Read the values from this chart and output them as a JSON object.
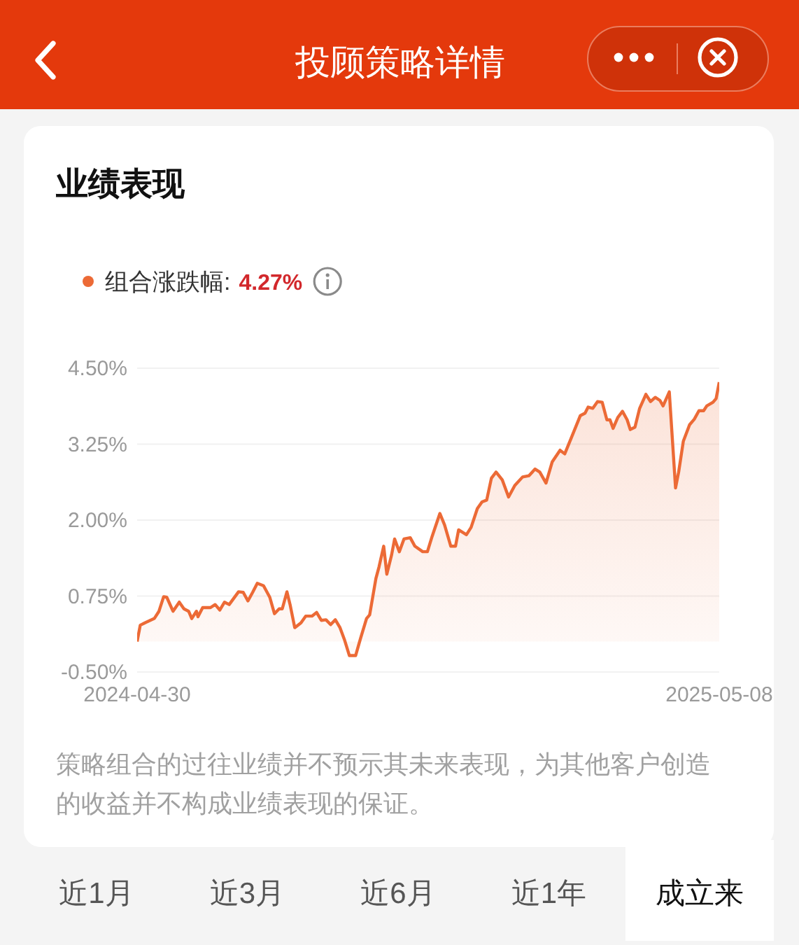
{
  "chart_data": {
    "type": "area",
    "title": "投顾策略详情",
    "subtitle": "业绩表现",
    "x": [
      "2024-04-30",
      "2024-05-02",
      "2024-05-05",
      "2024-05-11",
      "2024-05-14",
      "2024-05-17",
      "2024-05-19",
      "2024-05-23",
      "2024-05-27",
      "2024-05-30",
      "2024-06-02",
      "2024-06-04",
      "2024-06-07",
      "2024-06-08",
      "2024-06-11",
      "2024-06-16",
      "2024-06-19",
      "2024-06-22",
      "2024-06-25",
      "2024-06-28",
      "2024-07-04",
      "2024-07-07",
      "2024-07-10",
      "2024-07-13",
      "2024-07-16",
      "2024-07-20",
      "2024-07-24",
      "2024-07-27",
      "2024-07-30",
      "2024-08-01",
      "2024-08-04",
      "2024-08-06",
      "2024-08-09",
      "2024-08-13",
      "2024-08-16",
      "2024-08-20",
      "2024-08-23",
      "2024-08-26",
      "2024-08-29",
      "2024-09-01",
      "2024-09-04",
      "2024-09-07",
      "2024-09-10",
      "2024-09-13",
      "2024-09-17",
      "2024-09-20",
      "2024-09-24",
      "2024-09-26",
      "2024-09-30",
      "2024-10-02",
      "2024-10-05",
      "2024-10-07",
      "2024-10-10",
      "2024-10-12",
      "2024-10-15",
      "2024-10-18",
      "2024-10-22",
      "2024-10-25",
      "2024-10-30",
      "2024-11-02",
      "2024-11-05",
      "2024-11-10",
      "2024-11-13",
      "2024-11-17",
      "2024-11-20",
      "2024-11-22",
      "2024-11-27",
      "2024-11-30",
      "2024-12-04",
      "2024-12-07",
      "2024-12-10",
      "2024-12-13",
      "2024-12-16",
      "2024-12-20",
      "2024-12-24",
      "2024-12-28",
      "2025-01-02",
      "2025-01-06",
      "2025-01-10",
      "2025-01-13",
      "2025-01-17",
      "2025-01-21",
      "2025-01-26",
      "2025-01-29",
      "2025-02-02",
      "2025-02-08",
      "2025-02-11",
      "2025-02-13",
      "2025-02-16",
      "2025-02-19",
      "2025-02-22",
      "2025-02-25",
      "2025-02-27",
      "2025-03-01",
      "2025-03-04",
      "2025-03-07",
      "2025-03-10",
      "2025-03-12",
      "2025-03-15",
      "2025-03-18",
      "2025-03-22",
      "2025-03-25",
      "2025-03-28",
      "2025-03-31",
      "2025-04-02",
      "2025-04-06",
      "2025-04-10",
      "2025-04-12",
      "2025-04-15",
      "2025-04-19",
      "2025-04-22",
      "2025-04-25",
      "2025-04-28",
      "2025-04-30",
      "2025-05-04",
      "2025-05-06",
      "2025-05-08"
    ],
    "series": [
      {
        "name": "组合涨跌幅:",
        "color": "#ec6a36",
        "values": [
          0.0,
          0.27,
          0.31,
          0.38,
          0.5,
          0.74,
          0.73,
          0.5,
          0.65,
          0.54,
          0.5,
          0.38,
          0.5,
          0.41,
          0.56,
          0.56,
          0.61,
          0.52,
          0.65,
          0.61,
          0.82,
          0.81,
          0.67,
          0.81,
          0.96,
          0.92,
          0.73,
          0.46,
          0.54,
          0.54,
          0.82,
          0.61,
          0.23,
          0.31,
          0.42,
          0.42,
          0.48,
          0.35,
          0.36,
          0.28,
          0.36,
          0.23,
          0.02,
          -0.23,
          -0.23,
          0.04,
          0.38,
          0.44,
          1.04,
          1.23,
          1.57,
          1.11,
          1.42,
          1.69,
          1.48,
          1.69,
          1.71,
          1.57,
          1.48,
          1.48,
          1.73,
          2.11,
          1.92,
          1.57,
          1.57,
          1.84,
          1.76,
          1.88,
          2.19,
          2.3,
          2.33,
          2.69,
          2.79,
          2.66,
          2.38,
          2.57,
          2.71,
          2.73,
          2.84,
          2.79,
          2.61,
          2.96,
          3.15,
          3.09,
          3.34,
          3.72,
          3.76,
          3.86,
          3.84,
          3.95,
          3.94,
          3.65,
          3.65,
          3.51,
          3.69,
          3.79,
          3.65,
          3.49,
          3.53,
          3.84,
          4.07,
          3.95,
          4.02,
          3.97,
          3.88,
          4.11,
          2.53,
          2.79,
          3.3,
          3.57,
          3.66,
          3.8,
          3.8,
          3.88,
          3.94,
          4.0,
          4.27
        ]
      }
    ],
    "xlim": [
      "2024-04-30",
      "2025-05-08"
    ],
    "xticks": [
      {
        "value": "2024-04-30",
        "label": "2024-04-30"
      },
      {
        "value": "2025-05-08",
        "label": "2025-05-08"
      }
    ],
    "ylim": [
      -0.5,
      4.5
    ],
    "yticks": [
      {
        "value": -0.5,
        "label": "-0.50%"
      },
      {
        "value": 0.75,
        "label": "0.75%"
      },
      {
        "value": 2,
        "label": "2.00%"
      },
      {
        "value": 3.25,
        "label": "3.25%"
      },
      {
        "value": 4.5,
        "label": "4.50%"
      }
    ],
    "grid": "y",
    "legend": "top left",
    "annotations": [
      "4.27%",
      "策略组合的过往业绩并不预示其未来表现，为其他客户创造的收益并不构成业绩表现的保证。",
      "近1月",
      "近3月",
      "近6月",
      "近1年",
      "成立来"
    ]
  }
}
